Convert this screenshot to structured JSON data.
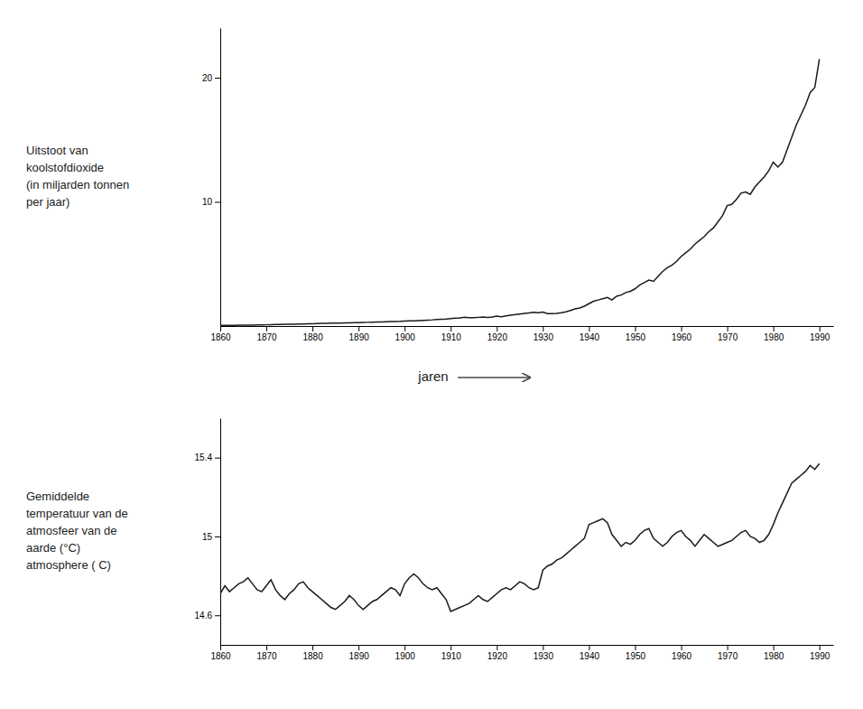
{
  "chart_data": [
    {
      "type": "line",
      "x": [
        1860,
        1861,
        1862,
        1863,
        1864,
        1865,
        1866,
        1867,
        1868,
        1869,
        1870,
        1871,
        1872,
        1873,
        1874,
        1875,
        1876,
        1877,
        1878,
        1879,
        1880,
        1881,
        1882,
        1883,
        1884,
        1885,
        1886,
        1887,
        1888,
        1889,
        1890,
        1891,
        1892,
        1893,
        1894,
        1895,
        1896,
        1897,
        1898,
        1899,
        1900,
        1901,
        1902,
        1903,
        1904,
        1905,
        1906,
        1907,
        1908,
        1909,
        1910,
        1911,
        1912,
        1913,
        1914,
        1915,
        1916,
        1917,
        1918,
        1919,
        1920,
        1921,
        1922,
        1923,
        1924,
        1925,
        1926,
        1927,
        1928,
        1929,
        1930,
        1931,
        1932,
        1933,
        1934,
        1935,
        1936,
        1937,
        1938,
        1939,
        1940,
        1941,
        1942,
        1943,
        1944,
        1945,
        1946,
        1947,
        1948,
        1949,
        1950,
        1951,
        1952,
        1953,
        1954,
        1955,
        1956,
        1957,
        1958,
        1959,
        1960,
        1961,
        1962,
        1963,
        1964,
        1965,
        1966,
        1967,
        1968,
        1969,
        1970,
        1971,
        1972,
        1973,
        1974,
        1975,
        1976,
        1977,
        1978,
        1979,
        1980,
        1981,
        1982,
        1983,
        1984,
        1985,
        1986,
        1987,
        1988,
        1989,
        1990
      ],
      "values": [
        0.05,
        0.05,
        0.06,
        0.06,
        0.07,
        0.07,
        0.08,
        0.08,
        0.09,
        0.09,
        0.1,
        0.11,
        0.12,
        0.13,
        0.14,
        0.14,
        0.15,
        0.16,
        0.17,
        0.18,
        0.19,
        0.2,
        0.21,
        0.22,
        0.23,
        0.23,
        0.24,
        0.25,
        0.26,
        0.27,
        0.28,
        0.29,
        0.3,
        0.31,
        0.32,
        0.33,
        0.35,
        0.36,
        0.37,
        0.38,
        0.4,
        0.41,
        0.42,
        0.44,
        0.46,
        0.48,
        0.5,
        0.53,
        0.55,
        0.57,
        0.6,
        0.63,
        0.66,
        0.7,
        0.68,
        0.67,
        0.7,
        0.73,
        0.7,
        0.72,
        0.8,
        0.75,
        0.82,
        0.88,
        0.92,
        0.97,
        1.02,
        1.06,
        1.1,
        1.08,
        1.12,
        1.0,
        1.0,
        1.02,
        1.08,
        1.15,
        1.25,
        1.38,
        1.45,
        1.6,
        1.8,
        2.0,
        2.1,
        2.2,
        2.3,
        2.1,
        2.4,
        2.5,
        2.7,
        2.8,
        3.0,
        3.3,
        3.5,
        3.7,
        3.6,
        4.0,
        4.4,
        4.7,
        4.9,
        5.2,
        5.6,
        5.9,
        6.2,
        6.6,
        6.9,
        7.2,
        7.6,
        7.9,
        8.4,
        8.9,
        9.7,
        9.8,
        10.2,
        10.7,
        10.8,
        10.6,
        11.2,
        11.6,
        12.0,
        12.5,
        13.2,
        12.8,
        13.2,
        14.2,
        15.2,
        16.2,
        17.0,
        17.8,
        18.8,
        19.2,
        21.5
      ],
      "color": "#1a1a1a",
      "xlim": [
        1860,
        1993
      ],
      "xticks": [
        1860,
        1870,
        1880,
        1890,
        1900,
        1910,
        1920,
        1930,
        1940,
        1950,
        1960,
        1970,
        1980,
        1990
      ],
      "ylim": [
        0,
        24
      ],
      "yticks": [
        10,
        20
      ],
      "xlabel": "jaren",
      "ylabel": "Uitstoot van\nkoolstofdioxide\n(in miljarden tonnen\nper jaar)"
    },
    {
      "type": "line",
      "x": [
        1860,
        1861,
        1862,
        1863,
        1864,
        1865,
        1866,
        1867,
        1868,
        1869,
        1870,
        1871,
        1872,
        1873,
        1874,
        1875,
        1876,
        1877,
        1878,
        1879,
        1880,
        1881,
        1882,
        1883,
        1884,
        1885,
        1886,
        1887,
        1888,
        1889,
        1890,
        1891,
        1892,
        1893,
        1894,
        1895,
        1896,
        1897,
        1898,
        1899,
        1900,
        1901,
        1902,
        1903,
        1904,
        1905,
        1906,
        1907,
        1908,
        1909,
        1910,
        1911,
        1912,
        1913,
        1914,
        1915,
        1916,
        1917,
        1918,
        1919,
        1920,
        1921,
        1922,
        1923,
        1924,
        1925,
        1926,
        1927,
        1928,
        1929,
        1930,
        1931,
        1932,
        1933,
        1934,
        1935,
        1936,
        1937,
        1938,
        1939,
        1940,
        1941,
        1942,
        1943,
        1944,
        1945,
        1946,
        1947,
        1948,
        1949,
        1950,
        1951,
        1952,
        1953,
        1954,
        1955,
        1956,
        1957,
        1958,
        1959,
        1960,
        1961,
        1962,
        1963,
        1964,
        1965,
        1966,
        1967,
        1968,
        1969,
        1970,
        1971,
        1972,
        1973,
        1974,
        1975,
        1976,
        1977,
        1978,
        1979,
        1980,
        1981,
        1982,
        1983,
        1984,
        1985,
        1986,
        1987,
        1988,
        1989,
        1990
      ],
      "values": [
        14.71,
        14.75,
        14.72,
        14.74,
        14.76,
        14.77,
        14.79,
        14.76,
        14.73,
        14.72,
        14.75,
        14.78,
        14.73,
        14.7,
        14.68,
        14.71,
        14.73,
        14.76,
        14.77,
        14.74,
        14.72,
        14.7,
        14.68,
        14.66,
        14.64,
        14.63,
        14.65,
        14.67,
        14.7,
        14.68,
        14.65,
        14.63,
        14.65,
        14.67,
        14.68,
        14.7,
        14.72,
        14.74,
        14.73,
        14.7,
        14.76,
        14.79,
        14.81,
        14.79,
        14.76,
        14.74,
        14.73,
        14.74,
        14.71,
        14.68,
        14.62,
        14.63,
        14.64,
        14.65,
        14.66,
        14.68,
        14.7,
        14.68,
        14.67,
        14.69,
        14.71,
        14.73,
        14.74,
        14.73,
        14.75,
        14.77,
        14.76,
        14.74,
        14.73,
        14.74,
        14.83,
        14.85,
        14.86,
        14.88,
        14.89,
        14.91,
        14.93,
        14.95,
        14.97,
        14.99,
        15.06,
        15.07,
        15.08,
        15.09,
        15.07,
        15.01,
        14.98,
        14.95,
        14.97,
        14.96,
        14.98,
        15.01,
        15.03,
        15.04,
        14.99,
        14.97,
        14.95,
        14.97,
        15.0,
        15.02,
        15.03,
        15.0,
        14.98,
        14.95,
        14.98,
        15.01,
        14.99,
        14.97,
        14.95,
        14.96,
        14.97,
        14.98,
        15.0,
        15.02,
        15.03,
        15.0,
        14.99,
        14.97,
        14.98,
        15.01,
        15.06,
        15.12,
        15.17,
        15.22,
        15.27,
        15.29,
        15.31,
        15.33,
        15.36,
        15.34,
        15.37
      ],
      "color": "#1a1a1a",
      "xlim": [
        1860,
        1993
      ],
      "xticks": [
        1860,
        1870,
        1880,
        1890,
        1900,
        1910,
        1920,
        1930,
        1940,
        1950,
        1960,
        1970,
        1980,
        1990
      ],
      "ylim": [
        14.45,
        15.6
      ],
      "yticks": [
        14.6,
        15.0,
        15.4
      ],
      "ylabel": "Gemiddelde\ntemperatuur van de\natmosfeer van de\naarde (°C)\natmosphere ( C)"
    }
  ]
}
